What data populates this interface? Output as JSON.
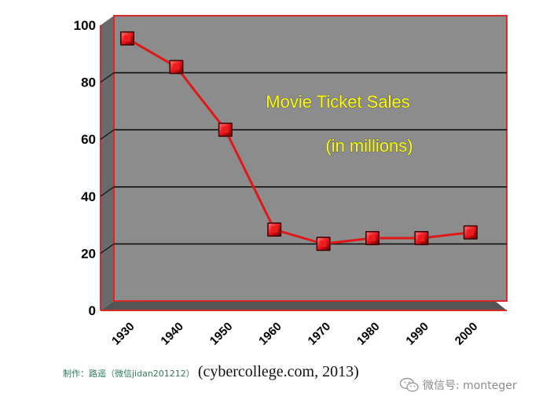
{
  "chart_data": {
    "type": "line",
    "title": "Movie Ticket Sales",
    "subtitle": "(in millions)",
    "categories": [
      "1930",
      "1940",
      "1950",
      "1960",
      "1970",
      "1980",
      "1990",
      "2000"
    ],
    "series": [
      {
        "values": [
          89,
          79,
          57,
          22,
          17,
          19,
          19,
          21
        ]
      }
    ],
    "ylim": [
      0,
      100
    ],
    "yticks": [
      "0",
      "20",
      "40",
      "60",
      "80",
      "100"
    ],
    "xlabel": "",
    "ylabel": "",
    "grid": true,
    "colors": {
      "plot_background": "#8c8c8c",
      "line": "#e01818",
      "marker": "#e8141a",
      "border": "#d92a2a",
      "title": "#ffff22"
    }
  },
  "footer": {
    "maker_credit": "制作：路遥（微信jidan201212）",
    "source": "(cybercollege.com, 2013)",
    "watermark": "微信号: monteger"
  }
}
